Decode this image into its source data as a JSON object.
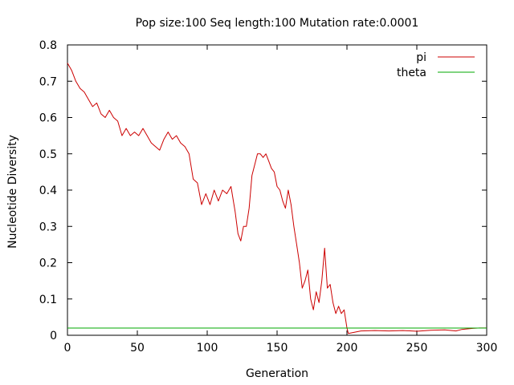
{
  "chart_data": {
    "type": "line",
    "title": "Pop size:100 Seq length:100 Mutation rate:0.0001",
    "xlabel": "Generation",
    "ylabel": "Nucleotide Diversity",
    "xlim": [
      0,
      300
    ],
    "ylim": [
      0,
      0.8
    ],
    "xticks": [
      0,
      50,
      100,
      150,
      200,
      250,
      300
    ],
    "yticks": [
      0,
      0.1,
      0.2,
      0.3,
      0.4,
      0.5,
      0.6,
      0.7,
      0.8
    ],
    "xtick_labels": [
      "0",
      "50",
      "100",
      "150",
      "200",
      "250",
      "300"
    ],
    "ytick_labels": [
      "0",
      "0.1",
      "0.2",
      "0.3",
      "0.4",
      "0.5",
      "0.6",
      "0.7",
      "0.8"
    ],
    "grid": false,
    "legend_position": "top-right",
    "series": [
      {
        "name": "pi",
        "color": "#cc0000",
        "points": [
          [
            0,
            0.75
          ],
          [
            3,
            0.73
          ],
          [
            6,
            0.7
          ],
          [
            9,
            0.68
          ],
          [
            12,
            0.67
          ],
          [
            15,
            0.65
          ],
          [
            18,
            0.63
          ],
          [
            21,
            0.64
          ],
          [
            24,
            0.61
          ],
          [
            27,
            0.6
          ],
          [
            30,
            0.62
          ],
          [
            33,
            0.6
          ],
          [
            36,
            0.59
          ],
          [
            39,
            0.55
          ],
          [
            42,
            0.57
          ],
          [
            45,
            0.55
          ],
          [
            48,
            0.56
          ],
          [
            51,
            0.55
          ],
          [
            54,
            0.57
          ],
          [
            57,
            0.55
          ],
          [
            60,
            0.53
          ],
          [
            63,
            0.52
          ],
          [
            66,
            0.51
          ],
          [
            69,
            0.54
          ],
          [
            72,
            0.56
          ],
          [
            75,
            0.54
          ],
          [
            78,
            0.55
          ],
          [
            81,
            0.53
          ],
          [
            84,
            0.52
          ],
          [
            87,
            0.5
          ],
          [
            90,
            0.43
          ],
          [
            93,
            0.42
          ],
          [
            96,
            0.36
          ],
          [
            99,
            0.39
          ],
          [
            102,
            0.36
          ],
          [
            105,
            0.4
          ],
          [
            108,
            0.37
          ],
          [
            111,
            0.4
          ],
          [
            114,
            0.39
          ],
          [
            117,
            0.41
          ],
          [
            120,
            0.34
          ],
          [
            122,
            0.28
          ],
          [
            124,
            0.26
          ],
          [
            126,
            0.3
          ],
          [
            128,
            0.3
          ],
          [
            130,
            0.35
          ],
          [
            132,
            0.44
          ],
          [
            134,
            0.47
          ],
          [
            136,
            0.5
          ],
          [
            138,
            0.5
          ],
          [
            140,
            0.49
          ],
          [
            142,
            0.5
          ],
          [
            144,
            0.48
          ],
          [
            146,
            0.46
          ],
          [
            148,
            0.45
          ],
          [
            150,
            0.41
          ],
          [
            152,
            0.4
          ],
          [
            154,
            0.37
          ],
          [
            156,
            0.35
          ],
          [
            158,
            0.4
          ],
          [
            160,
            0.36
          ],
          [
            162,
            0.3
          ],
          [
            164,
            0.25
          ],
          [
            166,
            0.2
          ],
          [
            168,
            0.13
          ],
          [
            170,
            0.15
          ],
          [
            172,
            0.18
          ],
          [
            174,
            0.1
          ],
          [
            176,
            0.07
          ],
          [
            178,
            0.12
          ],
          [
            180,
            0.09
          ],
          [
            182,
            0.15
          ],
          [
            184,
            0.24
          ],
          [
            186,
            0.13
          ],
          [
            188,
            0.14
          ],
          [
            190,
            0.09
          ],
          [
            192,
            0.06
          ],
          [
            194,
            0.08
          ],
          [
            196,
            0.06
          ],
          [
            198,
            0.07
          ],
          [
            200,
            0.02
          ],
          [
            201,
            0.005
          ],
          [
            210,
            0.012
          ],
          [
            220,
            0.013
          ],
          [
            230,
            0.012
          ],
          [
            240,
            0.013
          ],
          [
            250,
            0.011
          ],
          [
            260,
            0.014
          ],
          [
            270,
            0.015
          ],
          [
            278,
            0.012
          ],
          [
            282,
            0.016
          ],
          [
            287,
            0.018
          ],
          [
            290,
            0.019
          ],
          [
            295,
            0.02
          ],
          [
            300,
            0.02
          ]
        ]
      },
      {
        "name": "theta",
        "color": "#00aa00",
        "points": [
          [
            0,
            0.0198
          ],
          [
            300,
            0.0198
          ]
        ]
      }
    ]
  }
}
